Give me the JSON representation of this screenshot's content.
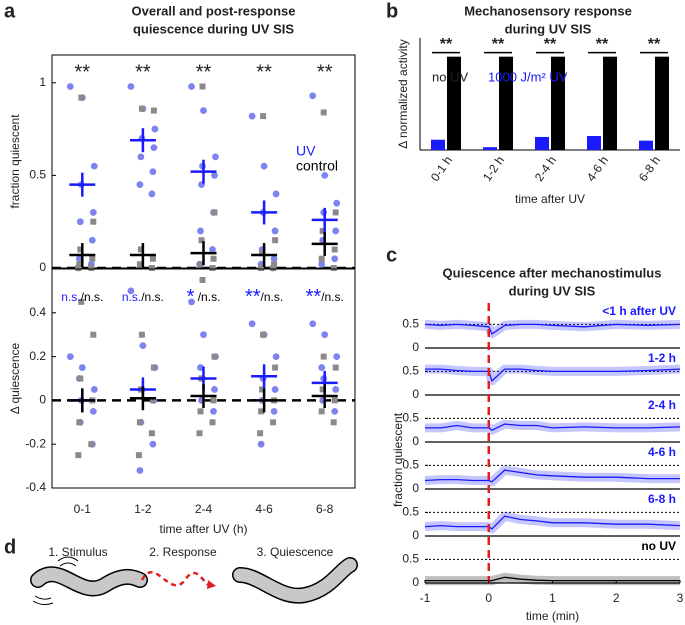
{
  "panel_labels": [
    "a",
    "b",
    "c",
    "d"
  ],
  "diagram": {
    "steps": [
      "1. Stimulus",
      "2. Response",
      "3. Quiescence"
    ]
  },
  "chart_data": [
    {
      "type": "strip",
      "title": [
        "Overall and post-response",
        "quiescence during UV SIS"
      ],
      "ylabel": "fraction quiescent",
      "ylim": [
        0,
        1.15
      ],
      "yticks": [
        0,
        0.5,
        1
      ],
      "reference_line": 0,
      "annotations": [
        "**",
        "**",
        "**",
        "**",
        "**"
      ],
      "series": [
        {
          "name": "UV",
          "color": "#1a1aff",
          "point_color": "#7d84f0",
          "values": [
            0.45,
            0.69,
            0.52,
            0.3,
            0.26
          ],
          "points": [
            [
              0.98,
              0.92,
              0.55,
              0.45,
              0.3,
              0.25,
              0.15,
              0.05,
              0.02,
              0
            ],
            [
              0.98,
              0.86,
              0.75,
              0.7,
              0.65,
              0.6,
              0.52,
              0.45,
              0.4
            ],
            [
              0.98,
              0.85,
              0.6,
              0.55,
              0.5,
              0.45,
              0.3,
              0.2,
              0.1,
              0.02
            ],
            [
              0.82,
              0.55,
              0.4,
              0.3,
              0.2,
              0.1,
              0.05,
              0.02,
              0
            ],
            [
              0.93,
              0.5,
              0.35,
              0.3,
              0.2,
              0.15,
              0.05,
              0.02
            ]
          ]
        },
        {
          "name": "control",
          "color": "#000000",
          "point_color": "#8a8a8a",
          "values": [
            0.07,
            0.07,
            0.08,
            0.07,
            0.13
          ],
          "points": [
            [
              0.92,
              0.25,
              0.1,
              0.05,
              0.02,
              0,
              0
            ],
            [
              0.86,
              0.85,
              0.1,
              0.05,
              0.02,
              0
            ],
            [
              0.98,
              0.3,
              0.15,
              0.05,
              0.02,
              0
            ],
            [
              0.82,
              0.15,
              0.08,
              0.02,
              0,
              0
            ],
            [
              0.84,
              0.3,
              0.2,
              0.1,
              0.05,
              0
            ]
          ]
        }
      ]
    },
    {
      "type": "strip",
      "ylabel": "Δ quiescence",
      "xlabel": "time after UV (h)",
      "categories": [
        "0-1",
        "1-2",
        "2-4",
        "4-6",
        "6-8"
      ],
      "ylim": [
        -0.4,
        0.6
      ],
      "yticks": [
        -0.4,
        -0.2,
        0,
        0.2,
        0.4
      ],
      "reference_line": 0,
      "annotations": [
        [
          "n.s.",
          "/n.s."
        ],
        [
          "n.s.",
          "/n.s."
        ],
        [
          "*",
          " /n.s."
        ],
        [
          "**",
          "/n.s."
        ],
        [
          "**",
          "/n.s."
        ]
      ],
      "series": [
        {
          "name": "UV",
          "color": "#1a1aff",
          "point_color": "#7d84f0",
          "values": [
            0,
            0.05,
            0.1,
            0.11,
            0.08
          ],
          "points": [
            [
              0.2,
              0.15,
              0.05,
              0,
              -0.05,
              -0.1,
              -0.2,
              0.1
            ],
            [
              0.5,
              0.25,
              0.15,
              0.05,
              0,
              -0.1,
              -0.2,
              -0.32
            ],
            [
              0.45,
              0.3,
              0.2,
              0.1,
              0.05,
              0,
              -0.05,
              0.15
            ],
            [
              0.35,
              0.3,
              0.2,
              0.1,
              0.05,
              0,
              -0.05,
              -0.2
            ],
            [
              0.35,
              0.3,
              0.2,
              0.1,
              0.05,
              0,
              -0.05,
              0.15
            ]
          ]
        },
        {
          "name": "control",
          "color": "#000000",
          "point_color": "#8a8a8a",
          "values": [
            0,
            0.01,
            0.02,
            0,
            0.02
          ],
          "points": [
            [
              0.45,
              0.3,
              0.1,
              0,
              -0.1,
              -0.2,
              -0.25
            ],
            [
              0.3,
              0.15,
              0.05,
              0,
              -0.1,
              -0.15,
              -0.25
            ],
            [
              0.55,
              0.2,
              0.1,
              0,
              -0.05,
              -0.1,
              -0.15
            ],
            [
              0.3,
              0.15,
              0.05,
              0,
              -0.05,
              -0.1,
              -0.15
            ],
            [
              0.2,
              0.15,
              0.05,
              0,
              -0.05,
              -0.1
            ]
          ]
        }
      ]
    },
    {
      "type": "bar",
      "title": [
        "Mechanosensory response",
        "during UV SIS"
      ],
      "ylabel": "Δ normalized activity",
      "xlabel": "time after UV",
      "categories": [
        "0-1 h",
        "1-2 h",
        "2-4 h",
        "4-6 h",
        "6-8 h"
      ],
      "ylim": [
        0,
        1.2
      ],
      "annotations": [
        "**",
        "**",
        "**",
        "**",
        "**"
      ],
      "series": [
        {
          "name": "1000 J/m² UV",
          "color": "#1a1aff",
          "values": [
            0.11,
            0.03,
            0.14,
            0.15,
            0.1
          ]
        },
        {
          "name": "no UV",
          "color": "#000000",
          "values": [
            1,
            1,
            1,
            1,
            1
          ]
        }
      ]
    },
    {
      "type": "line",
      "title": [
        "Quiescence after mechanostimulus",
        "during UV SIS"
      ],
      "ylabel": "fraction quiescent",
      "xlabel": "time (min)",
      "xlim": [
        -1,
        3
      ],
      "xticks": [
        -1,
        0,
        1,
        2,
        3
      ],
      "ylim": [
        0,
        0.7
      ],
      "yticks": [
        0,
        0.5
      ],
      "reference_line": 0.5,
      "stimulus_x": 0,
      "x": [
        -1,
        -0.75,
        -0.5,
        -0.25,
        0,
        0.05,
        0.25,
        0.5,
        0.75,
        1,
        1.5,
        2,
        2.5,
        3
      ],
      "series": [
        {
          "name": "<1 h after UV",
          "color": "#1a1aff",
          "values": [
            0.5,
            0.48,
            0.5,
            0.48,
            0.45,
            0.3,
            0.48,
            0.5,
            0.5,
            0.48,
            0.45,
            0.5,
            0.48,
            0.5
          ]
        },
        {
          "name": "1-2 h",
          "color": "#1a1aff",
          "values": [
            0.55,
            0.55,
            0.52,
            0.5,
            0.5,
            0.3,
            0.55,
            0.55,
            0.52,
            0.5,
            0.5,
            0.5,
            0.52,
            0.55
          ]
        },
        {
          "name": "2-4 h",
          "color": "#1a1aff",
          "values": [
            0.3,
            0.3,
            0.35,
            0.3,
            0.3,
            0.25,
            0.38,
            0.35,
            0.35,
            0.3,
            0.32,
            0.3,
            0.3,
            0.32
          ]
        },
        {
          "name": "4-6 h",
          "color": "#1a1aff",
          "values": [
            0.18,
            0.2,
            0.2,
            0.18,
            0.18,
            0.15,
            0.4,
            0.35,
            0.3,
            0.28,
            0.25,
            0.25,
            0.22,
            0.22
          ]
        },
        {
          "name": "6-8 h",
          "color": "#1a1aff",
          "values": [
            0.2,
            0.22,
            0.2,
            0.2,
            0.2,
            0.15,
            0.42,
            0.35,
            0.32,
            0.28,
            0.28,
            0.25,
            0.25,
            0.22
          ]
        },
        {
          "name": "no UV",
          "color": "#000000",
          "values": [
            0.05,
            0.05,
            0.05,
            0.05,
            0.05,
            0.05,
            0.12,
            0.08,
            0.06,
            0.05,
            0.05,
            0.05,
            0.05,
            0.05
          ]
        }
      ]
    }
  ]
}
